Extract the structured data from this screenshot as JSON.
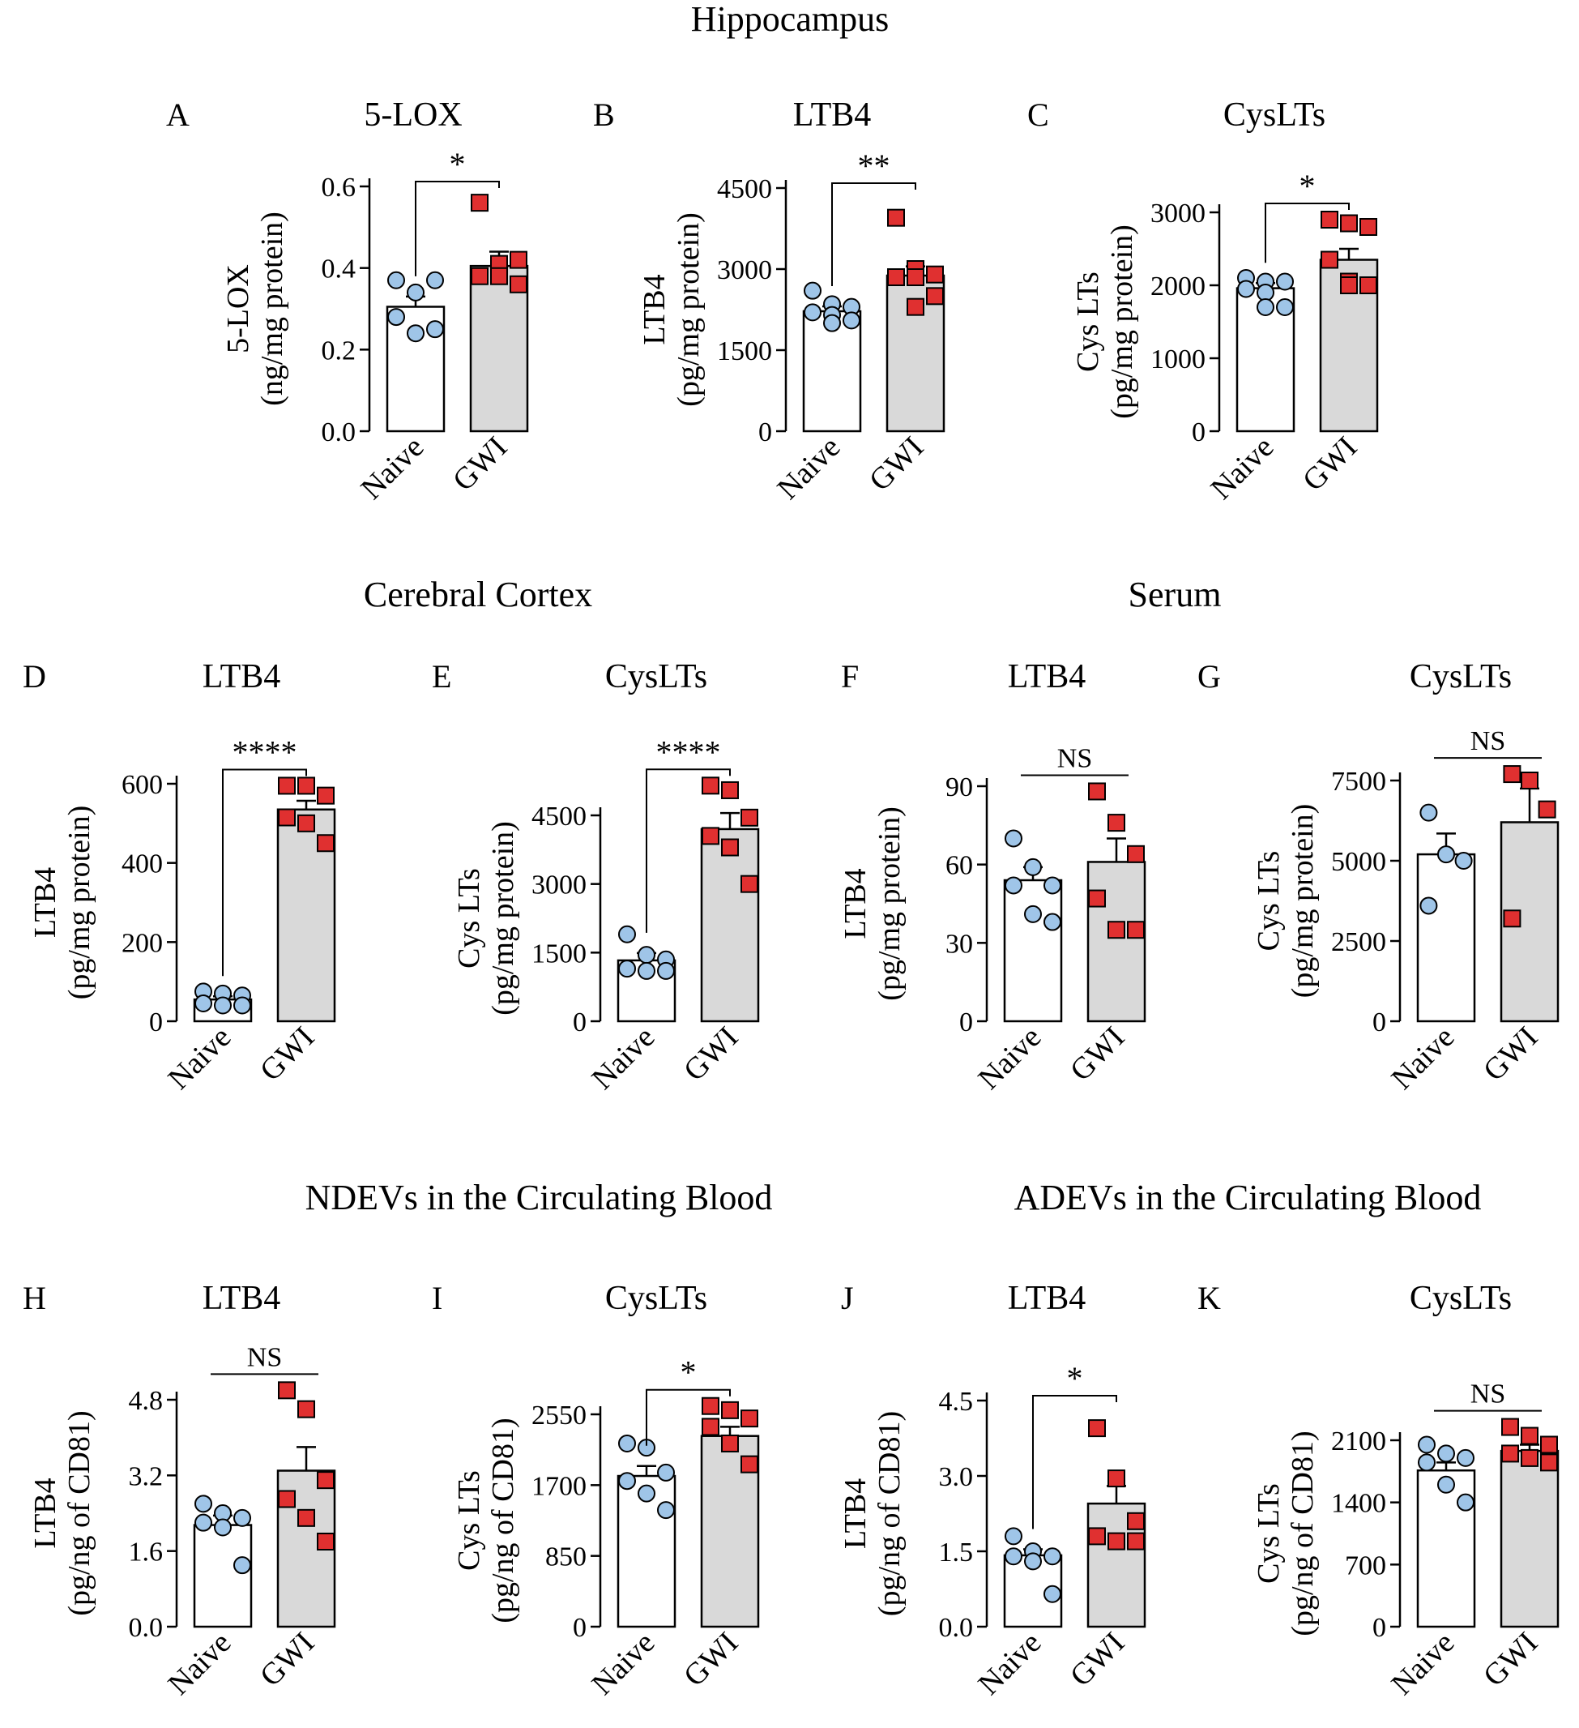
{
  "sections": {
    "hippocampus": "Hippocampus",
    "cortex": "Cerebral Cortex",
    "serum": "Serum",
    "ndevs": "NDEVs in the Circulating Blood",
    "adevs": "ADEVs in the Circulating Blood"
  },
  "colors": {
    "naive_bar": "#ffffff",
    "gwi_bar": "#d9d9d9",
    "naive_point": "#9fc5e8",
    "gwi_point": "#e03030"
  },
  "chart_data": [
    {
      "panel": "A",
      "type": "bar",
      "title": "5-LOX",
      "ylabel": "5-LOX",
      "ylabel2": "(ng/mg protein)",
      "categories": [
        "Naive",
        "GWI"
      ],
      "values": [
        0.305,
        0.405
      ],
      "sem": [
        0.025,
        0.035
      ],
      "ylim": [
        0,
        0.6
      ],
      "yticks": [
        0.0,
        0.2,
        0.4,
        0.6
      ],
      "ytick_labels": [
        "0.0",
        "0.2",
        "0.4",
        "0.6"
      ],
      "significance": "*",
      "points": [
        [
          0.37,
          0.34,
          0.37,
          0.28,
          0.24,
          0.25
        ],
        [
          0.56,
          0.41,
          0.36,
          0.38,
          0.38,
          0.42
        ]
      ]
    },
    {
      "panel": "B",
      "type": "bar",
      "title": "LTB4",
      "ylabel": "LTB4",
      "ylabel2": "(pg/mg protein)",
      "categories": [
        "Naive",
        "GWI"
      ],
      "values": [
        2220,
        2880
      ],
      "sem": [
        90,
        170
      ],
      "ylim": [
        0,
        4500
      ],
      "yticks": [
        0,
        1500,
        3000,
        4500
      ],
      "ytick_labels": [
        "0",
        "1500",
        "3000",
        "4500"
      ],
      "significance": "**",
      "points": [
        [
          2600,
          2350,
          2300,
          2200,
          2150,
          2050,
          2000
        ],
        [
          3950,
          3000,
          2900,
          2850,
          2850,
          2500,
          2300
        ]
      ]
    },
    {
      "panel": "C",
      "type": "bar",
      "title": "CysLTs",
      "ylabel": "Cys LTs",
      "ylabel2": "(pg/mg protein)",
      "categories": [
        "Naive",
        "GWI"
      ],
      "values": [
        1960,
        2350
      ],
      "sem": [
        70,
        150
      ],
      "ylim": [
        0,
        3000
      ],
      "yticks": [
        0,
        1000,
        2000,
        3000
      ],
      "ytick_labels": [
        "0",
        "1000",
        "2000",
        "3000"
      ],
      "significance": "*",
      "points": [
        [
          2100,
          2050,
          2050,
          1950,
          1900,
          1700,
          1700
        ],
        [
          2900,
          2850,
          2800,
          2350,
          2050,
          2000,
          2000
        ]
      ]
    },
    {
      "panel": "D",
      "type": "bar",
      "title": "LTB4",
      "ylabel": "LTB4",
      "ylabel2": "(pg/mg protein)",
      "categories": [
        "Naive",
        "GWI"
      ],
      "values": [
        55,
        535
      ],
      "sem": [
        8,
        22
      ],
      "ylim": [
        0,
        600
      ],
      "yticks": [
        0,
        200,
        400,
        600
      ],
      "ytick_labels": [
        "0",
        "200",
        "400",
        "600"
      ],
      "significance": "****",
      "points": [
        [
          75,
          70,
          65,
          45,
          40,
          40
        ],
        [
          595,
          595,
          570,
          515,
          500,
          450
        ]
      ]
    },
    {
      "panel": "E",
      "type": "bar",
      "title": "CysLTs",
      "ylabel": "Cys LTs",
      "ylabel2": "(pg/mg protein)",
      "categories": [
        "Naive",
        "GWI"
      ],
      "values": [
        1330,
        4200
      ],
      "sem": [
        160,
        350
      ],
      "ylim": [
        0,
        4500
      ],
      "yticks": [
        0,
        1500,
        3000,
        4500
      ],
      "ytick_labels": [
        "0",
        "1500",
        "3000",
        "4500"
      ],
      "significance": "****",
      "points": [
        [
          1900,
          1450,
          1350,
          1150,
          1100,
          1100
        ],
        [
          5150,
          5050,
          4450,
          4050,
          3800,
          3000
        ]
      ]
    },
    {
      "panel": "F",
      "type": "bar",
      "title": "LTB4",
      "ylabel": "LTB4",
      "ylabel2": "(pg/mg protein)",
      "categories": [
        "Naive",
        "GWI"
      ],
      "values": [
        54,
        61
      ],
      "sem": [
        5,
        9
      ],
      "ylim": [
        0,
        90
      ],
      "yticks": [
        0,
        30,
        60,
        90
      ],
      "ytick_labels": [
        "0",
        "30",
        "60",
        "90"
      ],
      "significance": "NS",
      "points": [
        [
          70,
          59,
          52,
          52,
          41,
          38
        ],
        [
          88,
          76,
          64,
          47,
          35,
          35
        ]
      ]
    },
    {
      "panel": "G",
      "type": "bar",
      "title": "CysLTs",
      "ylabel": "Cys LTs",
      "ylabel2": "(pg/mg protein)",
      "categories": [
        "Naive",
        "GWI"
      ],
      "values": [
        5200,
        6200
      ],
      "sem": [
        650,
        1050
      ],
      "ylim": [
        0,
        7500
      ],
      "yticks": [
        0,
        2500,
        5000,
        7500
      ],
      "ytick_labels": [
        "0",
        "2500",
        "5000",
        "7500"
      ],
      "significance": "NS",
      "points": [
        [
          6500,
          5200,
          5000,
          3600
        ],
        [
          7700,
          7500,
          6600,
          3200
        ]
      ]
    },
    {
      "panel": "H",
      "type": "bar",
      "title": "LTB4",
      "ylabel": "LTB4",
      "ylabel2": "(pg/ng of CD81)",
      "categories": [
        "Naive",
        "GWI"
      ],
      "values": [
        2.15,
        3.3
      ],
      "sem": [
        0.2,
        0.5
      ],
      "ylim": [
        0,
        4.8
      ],
      "yticks": [
        0.0,
        1.6,
        3.2,
        4.8
      ],
      "ytick_labels": [
        "0.0",
        "1.6",
        "3.2",
        "4.8"
      ],
      "significance": "NS",
      "points": [
        [
          2.6,
          2.4,
          2.3,
          2.2,
          2.1,
          1.3
        ],
        [
          5.0,
          4.6,
          3.1,
          2.7,
          2.3,
          1.8
        ]
      ]
    },
    {
      "panel": "I",
      "type": "bar",
      "title": "CysLTs",
      "ylabel": "Cys LTs",
      "ylabel2": "(pg/ng of CD81)",
      "categories": [
        "Naive",
        "GWI"
      ],
      "values": [
        1810,
        2290
      ],
      "sem": [
        120,
        110
      ],
      "ylim": [
        0,
        2550
      ],
      "yticks": [
        0,
        850,
        1700,
        2550
      ],
      "ytick_labels": [
        "0",
        "850",
        "1700",
        "2550"
      ],
      "significance": "*",
      "points": [
        [
          2200,
          2150,
          1850,
          1750,
          1600,
          1400
        ],
        [
          2650,
          2600,
          2500,
          2400,
          2200,
          1950
        ]
      ]
    },
    {
      "panel": "J",
      "type": "bar",
      "title": "LTB4",
      "ylabel": "LTB4",
      "ylabel2": "(pg/ng of CD81)",
      "categories": [
        "Naive",
        "GWI"
      ],
      "values": [
        1.42,
        2.45
      ],
      "sem": [
        0.12,
        0.35
      ],
      "ylim": [
        0,
        4.5
      ],
      "yticks": [
        0.0,
        1.5,
        3.0,
        4.5
      ],
      "ytick_labels": [
        "0.0",
        "1.5",
        "3.0",
        "4.5"
      ],
      "significance": "*",
      "points": [
        [
          1.8,
          1.5,
          1.4,
          1.4,
          1.3,
          0.65
        ],
        [
          3.95,
          2.95,
          2.1,
          1.8,
          1.7,
          1.7
        ]
      ]
    },
    {
      "panel": "K",
      "type": "bar",
      "title": "CysLTs",
      "ylabel": "Cys LTs",
      "ylabel2": "(pg/ng of CD81)",
      "categories": [
        "Naive",
        "GWI"
      ],
      "values": [
        1760,
        1980
      ],
      "sem": [
        90,
        70
      ],
      "ylim": [
        0,
        2100
      ],
      "yticks": [
        0,
        700,
        1400,
        2100
      ],
      "ytick_labels": [
        "0",
        "700",
        "1400",
        "2100"
      ],
      "significance": "NS",
      "points": [
        [
          2050,
          1950,
          1900,
          1850,
          1600,
          1400
        ],
        [
          2250,
          2150,
          2050,
          1950,
          1900,
          1850
        ]
      ]
    }
  ]
}
